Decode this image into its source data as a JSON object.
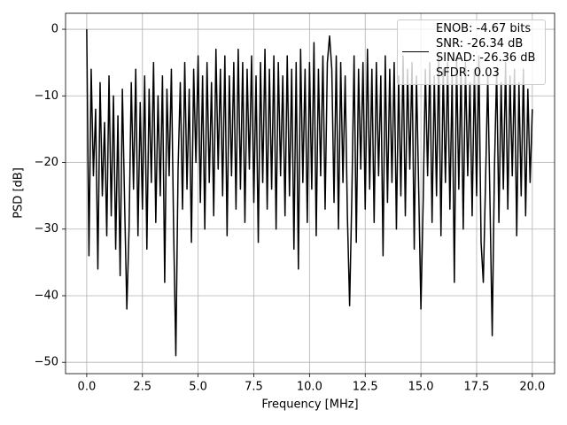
{
  "chart_data": {
    "type": "line",
    "xlabel": "Frequency [MHz]",
    "ylabel": "PSD [dB]",
    "xlim": [
      -0.95,
      21.0
    ],
    "ylim": [
      -51.7,
      2.4
    ],
    "xticks": [
      {
        "value": 0,
        "label": "0.0"
      },
      2.5,
      {
        "value": 5,
        "label": "5.0"
      },
      7.5,
      {
        "value": 10,
        "label": "10.0"
      },
      12.5,
      {
        "value": 15,
        "label": "15.0"
      },
      17.5,
      {
        "value": 20,
        "label": "20.0"
      }
    ],
    "yticks": [
      0,
      {
        "value": -10,
        "label": "−10"
      },
      {
        "value": -20,
        "label": "−20"
      },
      {
        "value": -30,
        "label": "−30"
      },
      {
        "value": -40,
        "label": "−40"
      },
      {
        "value": -50,
        "label": "−50"
      }
    ],
    "grid": true,
    "legend": "upper right",
    "x": [
      0,
      0.1,
      0.2,
      0.3,
      0.4,
      0.5,
      0.6,
      0.7,
      0.8,
      0.9,
      1,
      1.1,
      1.2,
      1.3,
      1.4,
      1.5,
      1.6,
      1.7,
      1.8,
      1.9,
      2,
      2.1,
      2.2,
      2.3,
      2.4,
      2.5,
      2.6,
      2.7,
      2.8,
      2.9,
      3,
      3.1,
      3.2,
      3.3,
      3.4,
      3.5,
      3.6,
      3.7,
      3.8,
      3.9,
      4,
      4.1,
      4.2,
      4.3,
      4.4,
      4.5,
      4.6,
      4.7,
      4.8,
      4.9,
      5,
      5.1,
      5.2,
      5.3,
      5.4,
      5.5,
      5.6,
      5.7,
      5.8,
      5.9,
      6,
      6.1,
      6.2,
      6.3,
      6.4,
      6.5,
      6.6,
      6.7,
      6.8,
      6.9,
      7,
      7.1,
      7.2,
      7.3,
      7.4,
      7.5,
      7.6,
      7.7,
      7.8,
      7.9,
      8,
      8.1,
      8.2,
      8.3,
      8.4,
      8.5,
      8.6,
      8.7,
      8.8,
      8.9,
      9,
      9.1,
      9.2,
      9.3,
      9.4,
      9.5,
      9.6,
      9.7,
      9.8,
      9.9,
      10,
      10.1,
      10.2,
      10.3,
      10.4,
      10.5,
      10.6,
      10.7,
      10.8,
      10.9,
      11,
      11.1,
      11.2,
      11.3,
      11.4,
      11.5,
      11.6,
      11.7,
      11.8,
      11.9,
      12,
      12.1,
      12.2,
      12.3,
      12.4,
      12.5,
      12.6,
      12.7,
      12.8,
      12.9,
      13,
      13.1,
      13.2,
      13.3,
      13.4,
      13.5,
      13.6,
      13.7,
      13.8,
      13.9,
      14,
      14.1,
      14.2,
      14.3,
      14.4,
      14.5,
      14.6,
      14.7,
      14.8,
      14.9,
      15,
      15.1,
      15.2,
      15.3,
      15.4,
      15.5,
      15.6,
      15.7,
      15.8,
      15.9,
      16,
      16.1,
      16.2,
      16.3,
      16.4,
      16.5,
      16.6,
      16.7,
      16.8,
      16.9,
      17,
      17.1,
      17.2,
      17.3,
      17.4,
      17.5,
      17.6,
      17.7,
      17.8,
      17.9,
      18,
      18.1,
      18.2,
      18.3,
      18.4,
      18.5,
      18.6,
      18.7,
      18.8,
      18.9,
      19,
      19.1,
      19.2,
      19.3,
      19.4,
      19.5,
      19.6,
      19.7,
      19.8,
      19.9,
      20
    ],
    "series": [
      {
        "name": "ENOB: -4.67 bits\nSNR: -26.34 dB\nSINAD: -26.36 dB\nSFDR: 0.03",
        "color": "#000000",
        "values": [
          0,
          -34,
          -6,
          -22,
          -12,
          -36,
          -8,
          -25,
          -14,
          -31,
          -7,
          -28,
          -10,
          -33,
          -13,
          -37,
          -9,
          -26,
          -42,
          -30,
          -8,
          -24,
          -6,
          -31,
          -11,
          -27,
          -7,
          -33,
          -9,
          -23,
          -5,
          -29,
          -10,
          -25,
          -7,
          -38,
          -9,
          -22,
          -6,
          -30,
          -49,
          -21,
          -8,
          -27,
          -5,
          -24,
          -9,
          -32,
          -6,
          -20,
          -4,
          -26,
          -7,
          -30,
          -5,
          -23,
          -8,
          -28,
          -3,
          -21,
          -6,
          -25,
          -4,
          -31,
          -7,
          -22,
          -5,
          -27,
          -3,
          -24,
          -5,
          -29,
          -6,
          -21,
          -4,
          -26,
          -7,
          -32,
          -5,
          -23,
          -3,
          -27,
          -6,
          -24,
          -4,
          -30,
          -5,
          -22,
          -7,
          -28,
          -4,
          -25,
          -6,
          -33,
          -5,
          -36,
          -3,
          -23,
          -6,
          -29,
          -5,
          -24,
          -2,
          -31,
          -6,
          -22,
          -4,
          -27,
          -5,
          -1,
          -6,
          -26,
          -4,
          -30,
          -5,
          -23,
          -7,
          -28,
          -41.5,
          -25,
          -4,
          -32,
          -6,
          -21,
          -5,
          -27,
          -3,
          -24,
          -6,
          -29,
          -5,
          -22,
          -7,
          -34,
          -4,
          -26,
          -6,
          -23,
          -5,
          -30,
          -7,
          -25,
          -4,
          -28,
          -6,
          -21,
          -5,
          -33,
          -7,
          -24,
          -42,
          -26,
          -6,
          -22,
          -5,
          -29,
          -7,
          -25,
          -4,
          -31,
          -6,
          -23,
          -5,
          -27,
          -7,
          -38,
          -4,
          -24,
          -6,
          -30,
          -5,
          -22,
          -8,
          -28,
          -6,
          -25,
          -4,
          -32,
          -38,
          -23,
          -7,
          -26,
          -46,
          -21,
          -6,
          -29,
          -8,
          -24,
          -5,
          -27,
          -7,
          -22,
          -6,
          -31,
          -8,
          -25,
          -6,
          -28,
          -9,
          -23,
          -12
        ]
      }
    ]
  }
}
